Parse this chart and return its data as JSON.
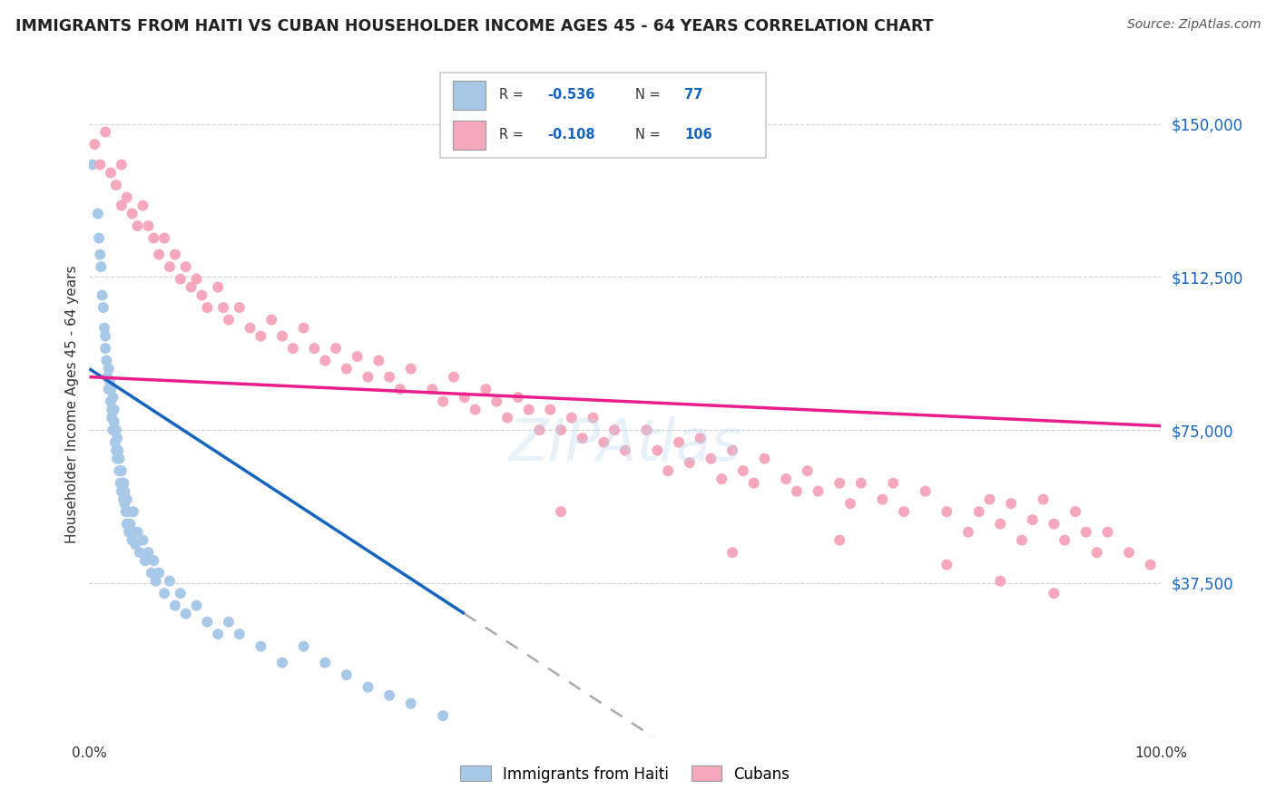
{
  "title": "IMMIGRANTS FROM HAITI VS CUBAN HOUSEHOLDER INCOME AGES 45 - 64 YEARS CORRELATION CHART",
  "source": "Source: ZipAtlas.com",
  "ylabel": "Householder Income Ages 45 - 64 years",
  "ytick_vals": [
    37500,
    75000,
    112500,
    150000
  ],
  "ytick_labels": [
    "$37,500",
    "$75,000",
    "$112,500",
    "$150,000"
  ],
  "xtick_left": "0.0%",
  "xtick_right": "100.0%",
  "xlim": [
    0,
    100
  ],
  "ylim": [
    0,
    162500
  ],
  "haiti_dot_color": "#a8c8e8",
  "cuba_dot_color": "#f5a8bc",
  "haiti_line_color": "#1565C0",
  "cuba_line_color": "#E91E8C",
  "watermark_color": "#b8d8f0",
  "watermark_alpha": 0.35,
  "haiti_line_x_solid_end": 35,
  "haiti_line_x_dash_end": 100,
  "haiti_points": [
    [
      0.3,
      140000
    ],
    [
      0.8,
      128000
    ],
    [
      0.9,
      122000
    ],
    [
      1.0,
      118000
    ],
    [
      1.1,
      115000
    ],
    [
      1.2,
      108000
    ],
    [
      1.3,
      105000
    ],
    [
      1.4,
      100000
    ],
    [
      1.5,
      98000
    ],
    [
      1.5,
      95000
    ],
    [
      1.6,
      92000
    ],
    [
      1.7,
      88000
    ],
    [
      1.8,
      90000
    ],
    [
      1.8,
      85000
    ],
    [
      1.9,
      87000
    ],
    [
      2.0,
      82000
    ],
    [
      2.0,
      85000
    ],
    [
      2.1,
      80000
    ],
    [
      2.1,
      78000
    ],
    [
      2.2,
      83000
    ],
    [
      2.2,
      75000
    ],
    [
      2.3,
      80000
    ],
    [
      2.3,
      77000
    ],
    [
      2.4,
      72000
    ],
    [
      2.5,
      75000
    ],
    [
      2.5,
      70000
    ],
    [
      2.6,
      73000
    ],
    [
      2.6,
      68000
    ],
    [
      2.7,
      70000
    ],
    [
      2.8,
      65000
    ],
    [
      2.8,
      68000
    ],
    [
      2.9,
      62000
    ],
    [
      3.0,
      65000
    ],
    [
      3.0,
      60000
    ],
    [
      3.1,
      62000
    ],
    [
      3.2,
      58000
    ],
    [
      3.2,
      62000
    ],
    [
      3.3,
      57000
    ],
    [
      3.3,
      60000
    ],
    [
      3.4,
      55000
    ],
    [
      3.5,
      58000
    ],
    [
      3.5,
      52000
    ],
    [
      3.6,
      55000
    ],
    [
      3.7,
      50000
    ],
    [
      3.8,
      52000
    ],
    [
      4.0,
      48000
    ],
    [
      4.1,
      55000
    ],
    [
      4.2,
      50000
    ],
    [
      4.3,
      47000
    ],
    [
      4.5,
      50000
    ],
    [
      4.7,
      45000
    ],
    [
      5.0,
      48000
    ],
    [
      5.2,
      43000
    ],
    [
      5.5,
      45000
    ],
    [
      5.8,
      40000
    ],
    [
      6.0,
      43000
    ],
    [
      6.2,
      38000
    ],
    [
      6.5,
      40000
    ],
    [
      7.0,
      35000
    ],
    [
      7.5,
      38000
    ],
    [
      8.0,
      32000
    ],
    [
      8.5,
      35000
    ],
    [
      9.0,
      30000
    ],
    [
      10.0,
      32000
    ],
    [
      11.0,
      28000
    ],
    [
      12.0,
      25000
    ],
    [
      13.0,
      28000
    ],
    [
      14.0,
      25000
    ],
    [
      16.0,
      22000
    ],
    [
      18.0,
      18000
    ],
    [
      20.0,
      22000
    ],
    [
      22.0,
      18000
    ],
    [
      24.0,
      15000
    ],
    [
      26.0,
      12000
    ],
    [
      28.0,
      10000
    ],
    [
      30.0,
      8000
    ],
    [
      33.0,
      5000
    ]
  ],
  "cuba_points": [
    [
      0.5,
      145000
    ],
    [
      1.0,
      140000
    ],
    [
      1.5,
      148000
    ],
    [
      2.0,
      138000
    ],
    [
      2.5,
      135000
    ],
    [
      3.0,
      130000
    ],
    [
      3.0,
      140000
    ],
    [
      3.5,
      132000
    ],
    [
      4.0,
      128000
    ],
    [
      4.5,
      125000
    ],
    [
      5.0,
      130000
    ],
    [
      5.5,
      125000
    ],
    [
      6.0,
      122000
    ],
    [
      6.5,
      118000
    ],
    [
      7.0,
      122000
    ],
    [
      7.5,
      115000
    ],
    [
      8.0,
      118000
    ],
    [
      8.5,
      112000
    ],
    [
      9.0,
      115000
    ],
    [
      9.5,
      110000
    ],
    [
      10.0,
      112000
    ],
    [
      10.5,
      108000
    ],
    [
      11.0,
      105000
    ],
    [
      12.0,
      110000
    ],
    [
      12.5,
      105000
    ],
    [
      13.0,
      102000
    ],
    [
      14.0,
      105000
    ],
    [
      15.0,
      100000
    ],
    [
      16.0,
      98000
    ],
    [
      17.0,
      102000
    ],
    [
      18.0,
      98000
    ],
    [
      19.0,
      95000
    ],
    [
      20.0,
      100000
    ],
    [
      21.0,
      95000
    ],
    [
      22.0,
      92000
    ],
    [
      23.0,
      95000
    ],
    [
      24.0,
      90000
    ],
    [
      25.0,
      93000
    ],
    [
      26.0,
      88000
    ],
    [
      27.0,
      92000
    ],
    [
      28.0,
      88000
    ],
    [
      29.0,
      85000
    ],
    [
      30.0,
      90000
    ],
    [
      32.0,
      85000
    ],
    [
      33.0,
      82000
    ],
    [
      34.0,
      88000
    ],
    [
      35.0,
      83000
    ],
    [
      36.0,
      80000
    ],
    [
      37.0,
      85000
    ],
    [
      38.0,
      82000
    ],
    [
      39.0,
      78000
    ],
    [
      40.0,
      83000
    ],
    [
      41.0,
      80000
    ],
    [
      42.0,
      75000
    ],
    [
      43.0,
      80000
    ],
    [
      44.0,
      75000
    ],
    [
      45.0,
      78000
    ],
    [
      46.0,
      73000
    ],
    [
      47.0,
      78000
    ],
    [
      48.0,
      72000
    ],
    [
      49.0,
      75000
    ],
    [
      50.0,
      70000
    ],
    [
      52.0,
      75000
    ],
    [
      53.0,
      70000
    ],
    [
      54.0,
      65000
    ],
    [
      55.0,
      72000
    ],
    [
      56.0,
      67000
    ],
    [
      57.0,
      73000
    ],
    [
      58.0,
      68000
    ],
    [
      59.0,
      63000
    ],
    [
      60.0,
      70000
    ],
    [
      61.0,
      65000
    ],
    [
      62.0,
      62000
    ],
    [
      63.0,
      68000
    ],
    [
      65.0,
      63000
    ],
    [
      66.0,
      60000
    ],
    [
      67.0,
      65000
    ],
    [
      68.0,
      60000
    ],
    [
      70.0,
      62000
    ],
    [
      71.0,
      57000
    ],
    [
      72.0,
      62000
    ],
    [
      74.0,
      58000
    ],
    [
      75.0,
      62000
    ],
    [
      76.0,
      55000
    ],
    [
      78.0,
      60000
    ],
    [
      80.0,
      55000
    ],
    [
      82.0,
      50000
    ],
    [
      83.0,
      55000
    ],
    [
      84.0,
      58000
    ],
    [
      85.0,
      52000
    ],
    [
      86.0,
      57000
    ],
    [
      87.0,
      48000
    ],
    [
      88.0,
      53000
    ],
    [
      89.0,
      58000
    ],
    [
      90.0,
      52000
    ],
    [
      91.0,
      48000
    ],
    [
      92.0,
      55000
    ],
    [
      93.0,
      50000
    ],
    [
      94.0,
      45000
    ],
    [
      95.0,
      50000
    ],
    [
      97.0,
      45000
    ],
    [
      99.0,
      42000
    ],
    [
      44.0,
      55000
    ],
    [
      60.0,
      45000
    ],
    [
      70.0,
      48000
    ],
    [
      80.0,
      42000
    ],
    [
      85.0,
      38000
    ],
    [
      90.0,
      35000
    ]
  ]
}
